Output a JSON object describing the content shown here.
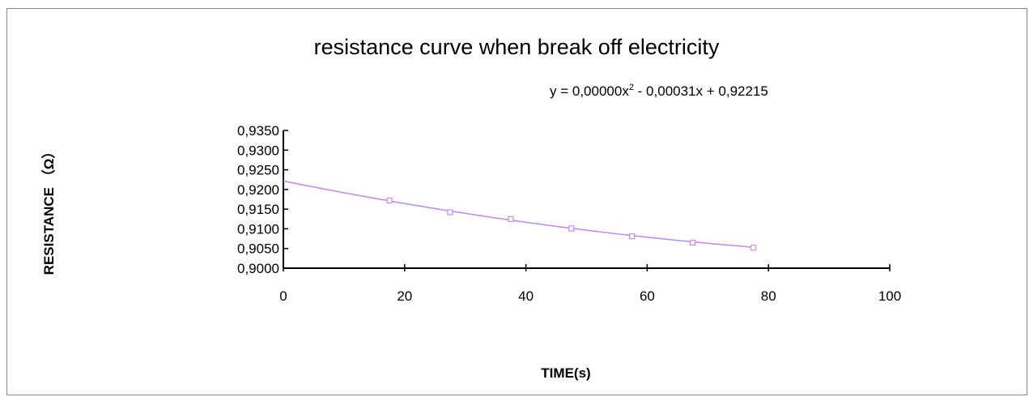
{
  "chart_data": {
    "type": "scatter",
    "title": "resistance curve when break off electricity",
    "xlabel": "TIME(s)",
    "ylabel": "RESISTANCE （Ω）",
    "xlim": [
      0,
      100
    ],
    "ylim": [
      0.9,
      0.935
    ],
    "x_ticks": [
      "0",
      "20",
      "40",
      "60",
      "80",
      "100"
    ],
    "y_ticks": [
      "0,9000",
      "0,9050",
      "0,9100",
      "0,9150",
      "0,9200",
      "0,9250",
      "0,9300",
      "0,9350"
    ],
    "grid": false,
    "legend": "none",
    "series": [
      {
        "x": [
          17.5,
          27.5,
          37.5,
          47.5,
          57.5,
          67.5,
          77.5
        ],
        "y": [
          0.9172,
          0.9142,
          0.9125,
          0.9101,
          0.9081,
          0.9065,
          0.9052
        ],
        "marker": "open-square",
        "color": "#cc88ee"
      }
    ],
    "trendline": {
      "type": "polynomial-2",
      "equation_label": {
        "main": "y = 0,00000x",
        "sup": "2",
        "rest": " - 0,00031x + 0,92215"
      },
      "coefficients": [
        1.2e-06,
        -0.00031,
        0.92215
      ],
      "x_range": [
        0,
        77.5
      ],
      "color": "#bb88ee"
    }
  }
}
